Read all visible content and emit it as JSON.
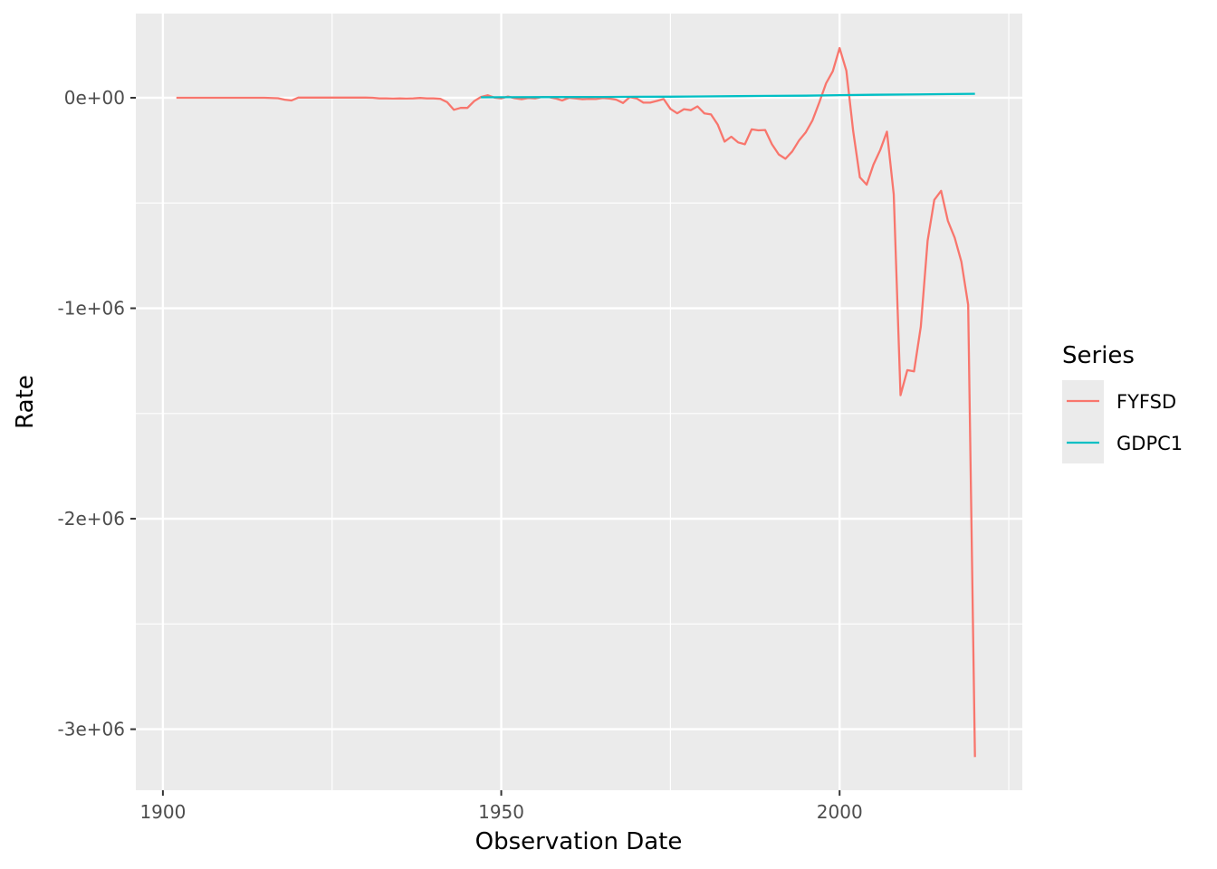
{
  "chart_data": {
    "type": "line",
    "xlabel": "Observation Date",
    "ylabel": "Rate",
    "xlim": [
      1896,
      2027
    ],
    "ylim": [
      -3290000,
      400000
    ],
    "x_ticks": [
      1900,
      1950,
      2000
    ],
    "x_tick_labels": [
      "1900",
      "1950",
      "2000"
    ],
    "x_minor_ticks": [
      1925,
      1975,
      2025
    ],
    "y_ticks": [
      0,
      -1000000,
      -2000000,
      -3000000
    ],
    "y_tick_labels": [
      "0e+00",
      "-1e+06",
      "-2e+06",
      "-3e+06"
    ],
    "y_minor_ticks": [
      -500000,
      -1500000,
      -2500000
    ],
    "grid": true,
    "background": "#ebebeb",
    "legend": {
      "title": "Series",
      "position": "right"
    },
    "series": [
      {
        "name": "FYFSD",
        "color": "#f8766d",
        "points": [
          [
            1902,
            0
          ],
          [
            1905,
            0
          ],
          [
            1910,
            0
          ],
          [
            1915,
            0
          ],
          [
            1917,
            -2000
          ],
          [
            1918,
            -9000
          ],
          [
            1919,
            -13000
          ],
          [
            1920,
            1000
          ],
          [
            1921,
            1000
          ],
          [
            1925,
            1000
          ],
          [
            1930,
            1000
          ],
          [
            1931,
            0
          ],
          [
            1932,
            -3000
          ],
          [
            1933,
            -3000
          ],
          [
            1934,
            -4000
          ],
          [
            1935,
            -3000
          ],
          [
            1936,
            -4000
          ],
          [
            1937,
            -3000
          ],
          [
            1938,
            -1000
          ],
          [
            1939,
            -3000
          ],
          [
            1940,
            -3000
          ],
          [
            1941,
            -5000
          ],
          [
            1942,
            -21000
          ],
          [
            1943,
            -57000
          ],
          [
            1944,
            -48000
          ],
          [
            1945,
            -48000
          ],
          [
            1946,
            -16000
          ],
          [
            1947,
            4000
          ],
          [
            1948,
            12000
          ],
          [
            1949,
            1000
          ],
          [
            1950,
            -3000
          ],
          [
            1951,
            6000
          ],
          [
            1952,
            -2000
          ],
          [
            1953,
            -7000
          ],
          [
            1954,
            -1000
          ],
          [
            1955,
            -3000
          ],
          [
            1956,
            4000
          ],
          [
            1957,
            3000
          ],
          [
            1958,
            -3000
          ],
          [
            1959,
            -13000
          ],
          [
            1960,
            0
          ],
          [
            1961,
            -3000
          ],
          [
            1962,
            -7000
          ],
          [
            1963,
            -5000
          ],
          [
            1964,
            -6000
          ],
          [
            1965,
            -1000
          ],
          [
            1966,
            -4000
          ],
          [
            1967,
            -9000
          ],
          [
            1968,
            -25000
          ],
          [
            1969,
            3000
          ],
          [
            1970,
            -3000
          ],
          [
            1971,
            -23000
          ],
          [
            1972,
            -23000
          ],
          [
            1973,
            -15000
          ],
          [
            1974,
            -6000
          ],
          [
            1975,
            -53000
          ],
          [
            1976,
            -74000
          ],
          [
            1977,
            -54000
          ],
          [
            1978,
            -59000
          ],
          [
            1979,
            -41000
          ],
          [
            1980,
            -74000
          ],
          [
            1981,
            -79000
          ],
          [
            1982,
            -128000
          ],
          [
            1983,
            -208000
          ],
          [
            1984,
            -185000
          ],
          [
            1985,
            -212000
          ],
          [
            1986,
            -221000
          ],
          [
            1987,
            -150000
          ],
          [
            1988,
            -155000
          ],
          [
            1989,
            -153000
          ],
          [
            1990,
            -221000
          ],
          [
            1991,
            -269000
          ],
          [
            1992,
            -290000
          ],
          [
            1993,
            -255000
          ],
          [
            1994,
            -203000
          ],
          [
            1995,
            -164000
          ],
          [
            1996,
            -107000
          ],
          [
            1997,
            -22000
          ],
          [
            1998,
            69000
          ],
          [
            1999,
            126000
          ],
          [
            2000,
            236000
          ],
          [
            2001,
            128000
          ],
          [
            2002,
            -158000
          ],
          [
            2003,
            -378000
          ],
          [
            2004,
            -413000
          ],
          [
            2005,
            -318000
          ],
          [
            2006,
            -248000
          ],
          [
            2007,
            -161000
          ],
          [
            2008,
            -459000
          ],
          [
            2009,
            -1413000
          ],
          [
            2010,
            -1294000
          ],
          [
            2011,
            -1300000
          ],
          [
            2012,
            -1087000
          ],
          [
            2013,
            -680000
          ],
          [
            2014,
            -485000
          ],
          [
            2015,
            -442000
          ],
          [
            2016,
            -585000
          ],
          [
            2017,
            -665000
          ],
          [
            2018,
            -779000
          ],
          [
            2019,
            -984000
          ],
          [
            2020,
            -3132000
          ]
        ]
      },
      {
        "name": "GDPC1",
        "color": "#00bfc4",
        "points": [
          [
            1947,
            2000
          ],
          [
            1950,
            2500
          ],
          [
            1955,
            3000
          ],
          [
            1960,
            3300
          ],
          [
            1965,
            4000
          ],
          [
            1970,
            4600
          ],
          [
            1975,
            5300
          ],
          [
            1980,
            6400
          ],
          [
            1985,
            7600
          ],
          [
            1990,
            8900
          ],
          [
            1995,
            10000
          ],
          [
            2000,
            12600
          ],
          [
            2005,
            14200
          ],
          [
            2010,
            15600
          ],
          [
            2015,
            17400
          ],
          [
            2020,
            18800
          ]
        ]
      }
    ]
  }
}
